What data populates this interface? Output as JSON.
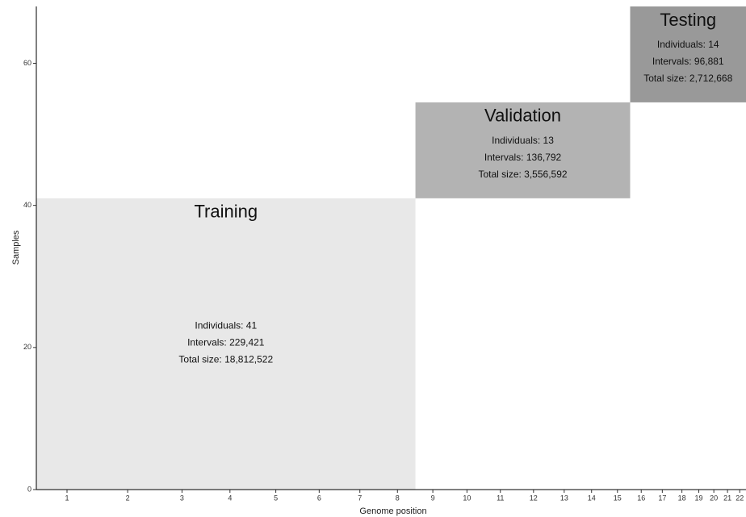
{
  "chart_data": {
    "type": "region",
    "x_label": "Genome position",
    "y_label": "Samples",
    "xlim": [
      0,
      2879
    ],
    "ylim": [
      0,
      68
    ],
    "yticks": [
      0,
      20,
      40,
      60
    ],
    "xticks": [
      {
        "value": 124.5,
        "label": "1"
      },
      {
        "value": 370.5,
        "label": "2"
      },
      {
        "value": 591,
        "label": "3"
      },
      {
        "value": 785.5,
        "label": "4"
      },
      {
        "value": 971.5,
        "label": "5"
      },
      {
        "value": 1147.5,
        "label": "6"
      },
      {
        "value": 1312.5,
        "label": "7"
      },
      {
        "value": 1465,
        "label": "8"
      },
      {
        "value": 1608.5,
        "label": "9"
      },
      {
        "value": 1747,
        "label": "10"
      },
      {
        "value": 1882.5,
        "label": "11"
      },
      {
        "value": 2017,
        "label": "12"
      },
      {
        "value": 2141.5,
        "label": "13"
      },
      {
        "value": 2252.5,
        "label": "14"
      },
      {
        "value": 2357.5,
        "label": "15"
      },
      {
        "value": 2454,
        "label": "16"
      },
      {
        "value": 2539.5,
        "label": "17"
      },
      {
        "value": 2619,
        "label": "18"
      },
      {
        "value": 2687.5,
        "label": "19"
      },
      {
        "value": 2748.5,
        "label": "20"
      },
      {
        "value": 2804,
        "label": "21"
      },
      {
        "value": 2853.5,
        "label": "22"
      }
    ],
    "regions": [
      {
        "name": "Training",
        "color": "#e8e8e8",
        "xmin": 0,
        "xmax": 1538,
        "ymin": 0,
        "ymax": 41,
        "lines": [
          "Individuals: 41",
          "Intervals: 229,421",
          "Total size: 18,812,522"
        ]
      },
      {
        "name": "Validation",
        "color": "#b3b3b3",
        "xmin": 1538,
        "xmax": 2409,
        "ymin": 41,
        "ymax": 54.5,
        "lines": [
          "Individuals: 13",
          "Intervals: 136,792",
          "Total size: 3,556,592"
        ]
      },
      {
        "name": "Testing",
        "color": "#999999",
        "xmin": 2409,
        "xmax": 2879,
        "ymin": 54.5,
        "ymax": 68,
        "lines": [
          "Individuals: 14",
          "Intervals: 96,881",
          "Total size: 2,712,668"
        ]
      }
    ]
  }
}
